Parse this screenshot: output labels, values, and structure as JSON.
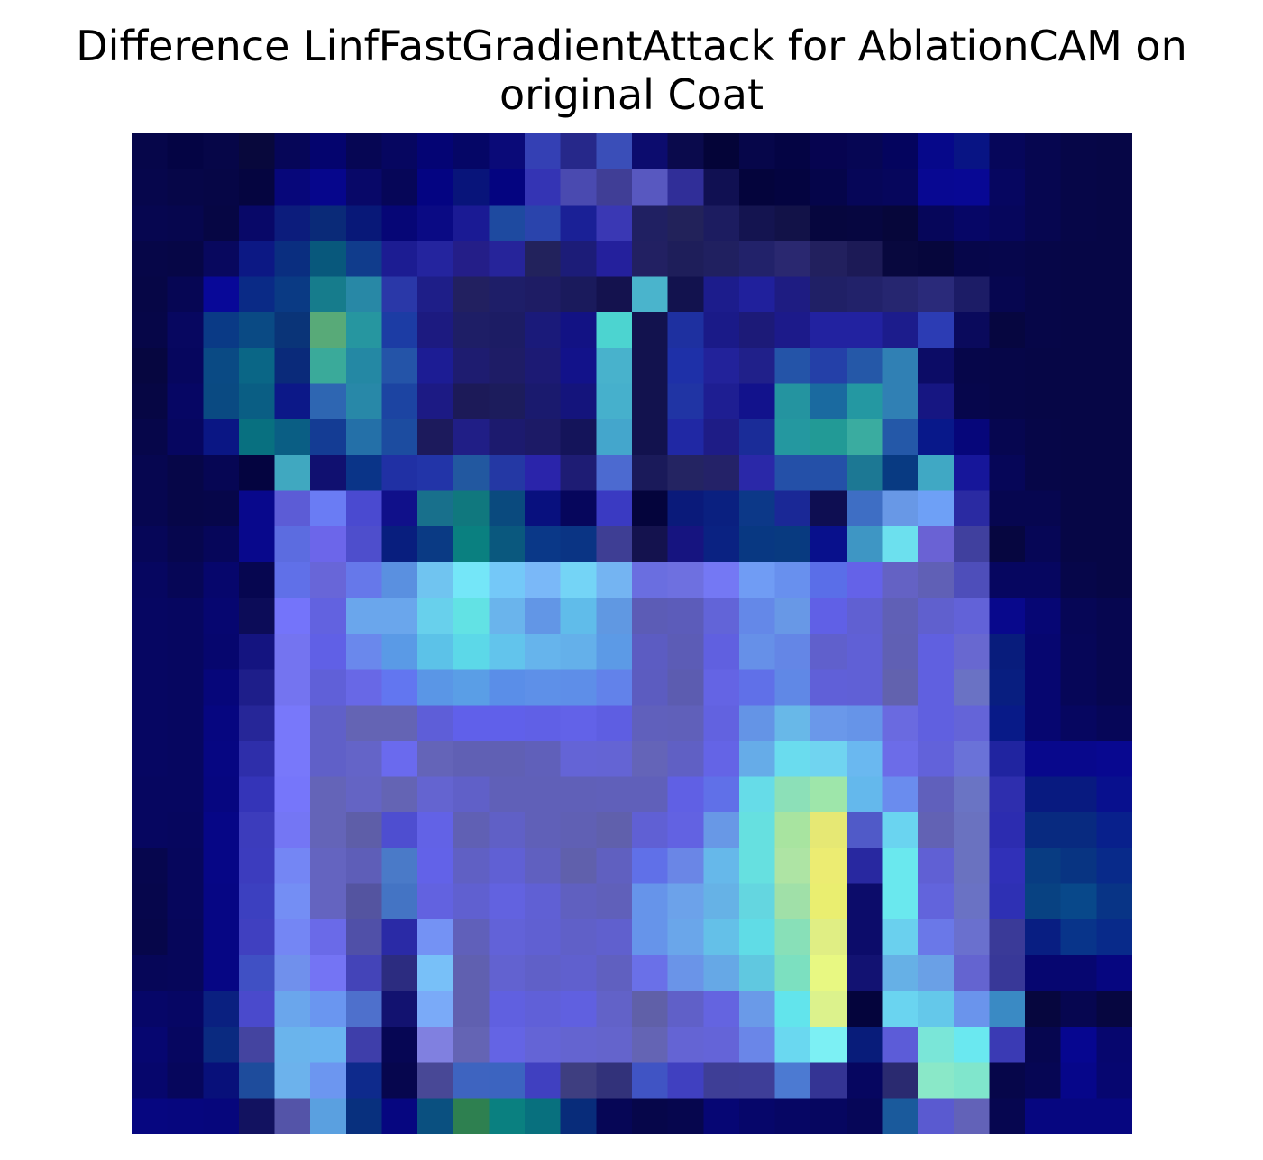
{
  "chart_data": {
    "type": "heatmap",
    "title": "Difference LinfFastGradientAttack for AblationCAM on\noriginal Coat",
    "grid": false,
    "axes_visible": false,
    "rows": 28,
    "cols": 28,
    "cells": [
      [
        "#06064a",
        "#040444",
        "#060648",
        "#08083c",
        "#060658",
        "#04046e",
        "#060654",
        "#060660",
        "#040474",
        "#050666",
        "#0a0a78",
        "#3440b4",
        "#26288a",
        "#3a4eb8",
        "#0c0c6e",
        "#0a0a4c",
        "#040438",
        "#06064a",
        "#040444",
        "#060450",
        "#060654",
        "#04045e",
        "#06088a",
        "#081484",
        "#06065a",
        "#060650",
        "#060648",
        "#060646"
      ],
      [
        "#06064c",
        "#060648",
        "#060646",
        "#050540",
        "#07077a",
        "#06068c",
        "#080868",
        "#060658",
        "#040482",
        "#08147a",
        "#040480",
        "#3434b4",
        "#4a4ab0",
        "#403e96",
        "#5858c0",
        "#302e98",
        "#101052",
        "#04043c",
        "#040440",
        "#05054a",
        "#060658",
        "#06065c",
        "#080892",
        "#080894",
        "#060660",
        "#060650",
        "#060648",
        "#060646"
      ],
      [
        "#060650",
        "#06064e",
        "#060644",
        "#080868",
        "#0c1c7c",
        "#0a2a78",
        "#081878",
        "#060676",
        "#0a0a84",
        "#1a1a94",
        "#1e4aa0",
        "#2a44ac",
        "#1a2096",
        "#3a38b4",
        "#202062",
        "#22225a",
        "#1c1c60",
        "#141450",
        "#121248",
        "#06063e",
        "#060640",
        "#06063a",
        "#06065a",
        "#060666",
        "#06065c",
        "#060650",
        "#060648",
        "#060646"
      ],
      [
        "#060648",
        "#060646",
        "#08085e",
        "#0c1884",
        "#0a2e80",
        "#08587c",
        "#103c8c",
        "#1c1c92",
        "#24249e",
        "#241e88",
        "#26249a",
        "#22225c",
        "#1c1c78",
        "#24209c",
        "#222062",
        "#1e1e5a",
        "#202060",
        "#22226a",
        "#2a2870",
        "#22205e",
        "#1c1a56",
        "#08083e",
        "#06063c",
        "#06064a",
        "#06064c",
        "#060648",
        "#060646",
        "#060646"
      ],
      [
        "#060646",
        "#060654",
        "#080898",
        "#0a2a86",
        "#0a3a84",
        "#167c8c",
        "#2888a6",
        "#2a38a8",
        "#1e1e88",
        "#222060",
        "#1e1e68",
        "#1e1c64",
        "#1a1a5c",
        "#14124e",
        "#4ab4cc",
        "#12124e",
        "#1c1c8c",
        "#20209c",
        "#1e1c82",
        "#202066",
        "#22226a",
        "#262670",
        "#2a2a7a",
        "#1c1c66",
        "#060650",
        "#060648",
        "#060646",
        "#060646"
      ],
      [
        "#060648",
        "#070760",
        "#0a3a86",
        "#0a4a84",
        "#0a3478",
        "#58aa78",
        "#2696a0",
        "#1c3ca4",
        "#1c1a80",
        "#1e1e66",
        "#1c1c64",
        "#1a1a7a",
        "#121284",
        "#4cd4d0",
        "#12124e",
        "#1e30a0",
        "#1a1a88",
        "#1c1a78",
        "#1c1a8a",
        "#2222a0",
        "#2222a0",
        "#1c1c8c",
        "#2c3cb4",
        "#0a0a5c",
        "#060640",
        "#060648",
        "#060646",
        "#060646"
      ],
      [
        "#060640",
        "#06065e",
        "#0a4a84",
        "#0a6686",
        "#0a2a7a",
        "#3aaa9a",
        "#2488a4",
        "#2454a8",
        "#1c1c94",
        "#1e1c70",
        "#1e1c66",
        "#1c1a74",
        "#12128a",
        "#48b2cc",
        "#12124e",
        "#1e30a8",
        "#22229a",
        "#20208a",
        "#2454a8",
        "#2440a8",
        "#2558a8",
        "#3080b4",
        "#0c0c66",
        "#06064a",
        "#060648",
        "#060646",
        "#060646",
        "#060646"
      ],
      [
        "#060644",
        "#060664",
        "#0a4a82",
        "#0a5e84",
        "#0c1888",
        "#2e66b2",
        "#2888a8",
        "#1c44a2",
        "#1c1a84",
        "#1c1a58",
        "#1c1c5c",
        "#1a1a6e",
        "#14147c",
        "#46b0cc",
        "#12124e",
        "#2034a4",
        "#1e1e92",
        "#12128c",
        "#2494a0",
        "#1a6aa0",
        "#2498a2",
        "#3080b4",
        "#161682",
        "#06064c",
        "#060648",
        "#060646",
        "#060646",
        "#060646"
      ],
      [
        "#06064a",
        "#060660",
        "#0a1684",
        "#087080",
        "#0a5e84",
        "#143c94",
        "#2470a8",
        "#1c4ca0",
        "#1c1a5c",
        "#201e86",
        "#1c1a6e",
        "#1c1a66",
        "#14145a",
        "#44a6cc",
        "#12124e",
        "#2028a4",
        "#1e1c86",
        "#1a2c98",
        "#2498a0",
        "#229a96",
        "#3aaca0",
        "#2458a8",
        "#08188a",
        "#06067a",
        "#060650",
        "#060648",
        "#060646",
        "#060646"
      ],
      [
        "#060650",
        "#060648",
        "#060654",
        "#040440",
        "#40a8c0",
        "#101070",
        "#0a3488",
        "#2030a4",
        "#2234a8",
        "#2258a0",
        "#2438a4",
        "#2a24aa",
        "#1e1c74",
        "#4c6ad0",
        "#1a1a5a",
        "#242462",
        "#242268",
        "#2a28a8",
        "#2450a8",
        "#2450a8",
        "#1c7894",
        "#083a82",
        "#40a8c4",
        "#16169a",
        "#060658",
        "#060648",
        "#060646",
        "#060646"
      ],
      [
        "#060650",
        "#060648",
        "#06064a",
        "#08088c",
        "#5c5cd6",
        "#6a7cf4",
        "#4a4ad0",
        "#10108a",
        "#18708c",
        "#10787e",
        "#0a4a7e",
        "#08107e",
        "#06065c",
        "#3a3ac2",
        "#04043c",
        "#0a1a7a",
        "#0a2080",
        "#0c3888",
        "#1a2896",
        "#0e0e52",
        "#3e6ec4",
        "#6898e6",
        "#6ea0f6",
        "#2a2aa2",
        "#060650",
        "#060650",
        "#060646",
        "#060646"
      ],
      [
        "#060658",
        "#06064e",
        "#06065a",
        "#08088c",
        "#5c6ce0",
        "#6c66ea",
        "#4e4ecc",
        "#081e7e",
        "#0a3a84",
        "#0a8080",
        "#0a587e",
        "#0a3888",
        "#0a3484",
        "#3e3e94",
        "#14124e",
        "#161480",
        "#0a2282",
        "#083882",
        "#083a80",
        "#08108c",
        "#3e96c4",
        "#6ce0ee",
        "#6a62d4",
        "#40409e",
        "#060640",
        "#060656",
        "#060646",
        "#060646"
      ],
      [
        "#060660",
        "#060656",
        "#06066c",
        "#060650",
        "#6070e8",
        "#6866d8",
        "#6678ea",
        "#5a90e0",
        "#70c4f0",
        "#74e6f8",
        "#74c8f8",
        "#7ab8f8",
        "#74d4f6",
        "#74b4f2",
        "#6a6ee0",
        "#6e70e0",
        "#7478f4",
        "#709cf4",
        "#6890ee",
        "#5a6ee8",
        "#6462e8",
        "#6462c4",
        "#6060b6",
        "#4e4eba",
        "#060660",
        "#060660",
        "#06064a",
        "#060646"
      ],
      [
        "#060662",
        "#060660",
        "#060670",
        "#0c0c58",
        "#7474fa",
        "#6262e0",
        "#6aa6ec",
        "#6aa6ec",
        "#68d0ec",
        "#62e2e4",
        "#6ab4ec",
        "#6296e6",
        "#60bcea",
        "#6098e2",
        "#5c5cb6",
        "#5c5cba",
        "#6264d8",
        "#6488e8",
        "#6898e6",
        "#6060e6",
        "#6060d2",
        "#6060b6",
        "#6060ce",
        "#6262d8",
        "#08088c",
        "#060674",
        "#060656",
        "#060650"
      ],
      [
        "#060662",
        "#060660",
        "#06066e",
        "#141480",
        "#7474f0",
        "#6060e6",
        "#6a88ec",
        "#5a9ae6",
        "#5cc2e8",
        "#5cd8e8",
        "#62c4ec",
        "#66b4ec",
        "#64b0ea",
        "#5c9ae6",
        "#5c5cc2",
        "#5c5cb6",
        "#6060e0",
        "#6690e8",
        "#6486e6",
        "#6060cc",
        "#6060d6",
        "#6060b4",
        "#6060e0",
        "#6868d0",
        "#081c7c",
        "#060670",
        "#060658",
        "#060650"
      ],
      [
        "#060662",
        "#060660",
        "#06067a",
        "#1e1e8a",
        "#7474f0",
        "#6060d8",
        "#6868e6",
        "#6276f0",
        "#5a96e6",
        "#5a9ee6",
        "#5a8ee8",
        "#5e90e8",
        "#5e8ee8",
        "#6282ea",
        "#5c5cc0",
        "#5c5cb0",
        "#6464e4",
        "#6070e8",
        "#6088e6",
        "#6060d8",
        "#6060d6",
        "#6262ae",
        "#6060e0",
        "#6a72c4",
        "#081e80",
        "#060670",
        "#060658",
        "#060650"
      ],
      [
        "#060662",
        "#060660",
        "#060680",
        "#262698",
        "#7878fa",
        "#6060c8",
        "#6464b4",
        "#6464b4",
        "#5e5ed8",
        "#6060ea",
        "#6060ea",
        "#6060e6",
        "#6262e8",
        "#5e5ee2",
        "#6060bc",
        "#6060ba",
        "#6262e0",
        "#6494e6",
        "#68b8e8",
        "#6a98ea",
        "#6694e8",
        "#6a6ae0",
        "#6060e0",
        "#6464d8",
        "#081a88",
        "#060670",
        "#060660",
        "#060658"
      ],
      [
        "#060662",
        "#060660",
        "#060682",
        "#2e2eaa",
        "#7878fa",
        "#6060c8",
        "#6464c8",
        "#6a6aee",
        "#6464b8",
        "#6060b4",
        "#6060b4",
        "#6060ba",
        "#6464d6",
        "#6464d4",
        "#6464b8",
        "#6060c4",
        "#6464e6",
        "#66ace8",
        "#6adcee",
        "#70d4f0",
        "#6ab8f0",
        "#6c6ce8",
        "#6262da",
        "#6a72d8",
        "#2024a0",
        "#08088c",
        "#08088c",
        "#080890"
      ],
      [
        "#060660",
        "#060660",
        "#060680",
        "#3434b8",
        "#7676fa",
        "#6464b8",
        "#6464c4",
        "#6464b4",
        "#6464d0",
        "#6060c8",
        "#6060b8",
        "#6060b8",
        "#6060b8",
        "#6060ba",
        "#6060ba",
        "#6060e4",
        "#6070e8",
        "#66dce8",
        "#8ce0b8",
        "#9ee6aa",
        "#64b8ec",
        "#6a8cee",
        "#6060bc",
        "#6a74c4",
        "#2e2eae",
        "#081a80",
        "#081a80",
        "#08108e"
      ],
      [
        "#060660",
        "#06065e",
        "#060686",
        "#3c3cbc",
        "#7476f4",
        "#6464b8",
        "#5e5ea8",
        "#4e4ed0",
        "#6262e6",
        "#6060b4",
        "#6060c6",
        "#6060b8",
        "#6060b4",
        "#6060ac",
        "#6060d4",
        "#6262e2",
        "#6898e6",
        "#66e0e0",
        "#a8e4a0",
        "#e6e874",
        "#505ac8",
        "#6ad4f0",
        "#6262b4",
        "#6a72c0",
        "#2c2cb0",
        "#082a80",
        "#082a80",
        "#08208c"
      ],
      [
        "#06064e",
        "#06065c",
        "#060686",
        "#3c3cbe",
        "#7486f4",
        "#6464c0",
        "#5e5eb8",
        "#4a7ac8",
        "#6262e8",
        "#6060c4",
        "#6060d4",
        "#6060c0",
        "#6060ac",
        "#6060c0",
        "#6070e8",
        "#6a86e6",
        "#66b8ea",
        "#66e0e0",
        "#aee4a4",
        "#ecec72",
        "#2828a0",
        "#6ae8ee",
        "#6060d4",
        "#6a72c0",
        "#3030b8",
        "#083c82",
        "#083482",
        "#082a8a"
      ],
      [
        "#06064c",
        "#06065c",
        "#060684",
        "#3c40c0",
        "#748ef4",
        "#6464c0",
        "#5454a0",
        "#4474c4",
        "#6262e0",
        "#6060d0",
        "#6262e0",
        "#6060d4",
        "#6060c0",
        "#6060ba",
        "#6694ea",
        "#6ca2ea",
        "#66b2e6",
        "#64d6e0",
        "#a0e0a8",
        "#eaee70",
        "#0c0c6a",
        "#6ae8ee",
        "#6264dc",
        "#6a72c4",
        "#2e30b4",
        "#084282",
        "#08488a",
        "#083486"
      ],
      [
        "#06064a",
        "#06065a",
        "#060684",
        "#4040c0",
        "#7486f4",
        "#6a6ae8",
        "#5050a8",
        "#2a2aa6",
        "#7492f4",
        "#6060ba",
        "#6262d8",
        "#6060d2",
        "#6060c8",
        "#6060ce",
        "#6694ea",
        "#6aa6ea",
        "#64c0e8",
        "#60dce6",
        "#88e0b8",
        "#e0ee84",
        "#0c0c6a",
        "#6ad0ee",
        "#6a78e8",
        "#6a70ce",
        "#3a3a98",
        "#081e82",
        "#08348a",
        "#082a8a"
      ],
      [
        "#060658",
        "#06065a",
        "#060684",
        "#4050c4",
        "#7090ec",
        "#7474f4",
        "#4444b8",
        "#2c2c80",
        "#78c0f8",
        "#6060b0",
        "#6262d0",
        "#6060c8",
        "#6060ce",
        "#6060c0",
        "#6a70e8",
        "#6a94e8",
        "#66a8e6",
        "#60c8e0",
        "#7ce0c0",
        "#e8f882",
        "#121272",
        "#66b0e6",
        "#6aa0e6",
        "#6464d0",
        "#383898",
        "#060670",
        "#060670",
        "#060680"
      ],
      [
        "#060668",
        "#060664",
        "#0a2080",
        "#4a4acc",
        "#6aa6ec",
        "#6a96f0",
        "#4e70cc",
        "#121270",
        "#7aaaf8",
        "#6060b0",
        "#6060e0",
        "#6060d8",
        "#6060e0",
        "#6262c8",
        "#6060a8",
        "#6060c8",
        "#6464e0",
        "#6a9ae8",
        "#62e4ec",
        "#dcf28c",
        "#04043c",
        "#6ad4f0",
        "#64c8ea",
        "#6a94ec",
        "#3a8ac4",
        "#06063e",
        "#060650",
        "#060640"
      ],
      [
        "#060670",
        "#060660",
        "#0a2a80",
        "#4444a0",
        "#6ab4ec",
        "#6ab4f0",
        "#3e3eaa",
        "#060654",
        "#8080e0",
        "#6464b4",
        "#6464e4",
        "#6464d6",
        "#6464d0",
        "#6464cc",
        "#6464b4",
        "#6464d4",
        "#6464d8",
        "#6a86e8",
        "#6ad8f0",
        "#7cf0f4",
        "#081c7a",
        "#5c5cd8",
        "#7ae6d8",
        "#6ae8f0",
        "#3a3ab4",
        "#060650",
        "#060690",
        "#06066e"
      ],
      [
        "#06066c",
        "#06065c",
        "#08107a",
        "#1e4c9c",
        "#6cb2ec",
        "#6c96f0",
        "#0e2a8c",
        "#06064e",
        "#484896",
        "#3e64c0",
        "#3c64c0",
        "#4040c0",
        "#3e3e80",
        "#32327a",
        "#4054c4",
        "#4040c0",
        "#3e3e96",
        "#3e3e98",
        "#4c7ad2",
        "#343494",
        "#060660",
        "#2a2a70",
        "#8ae8c8",
        "#80e6cc",
        "#06064a",
        "#060654",
        "#06068a",
        "#060670"
      ],
      [
        "#060680",
        "#06067e",
        "#06067c",
        "#121260",
        "#5454a8",
        "#5aa0e0",
        "#08307e",
        "#060680",
        "#0a5080",
        "#2e8050",
        "#0a8080",
        "#08707e",
        "#082c7a",
        "#060656",
        "#06064a",
        "#06064e",
        "#060674",
        "#06066a",
        "#060664",
        "#060660",
        "#060658",
        "#1a5a9c",
        "#5a5ad0",
        "#6262b8",
        "#060650",
        "#060680",
        "#060680",
        "#060680"
      ]
    ]
  }
}
